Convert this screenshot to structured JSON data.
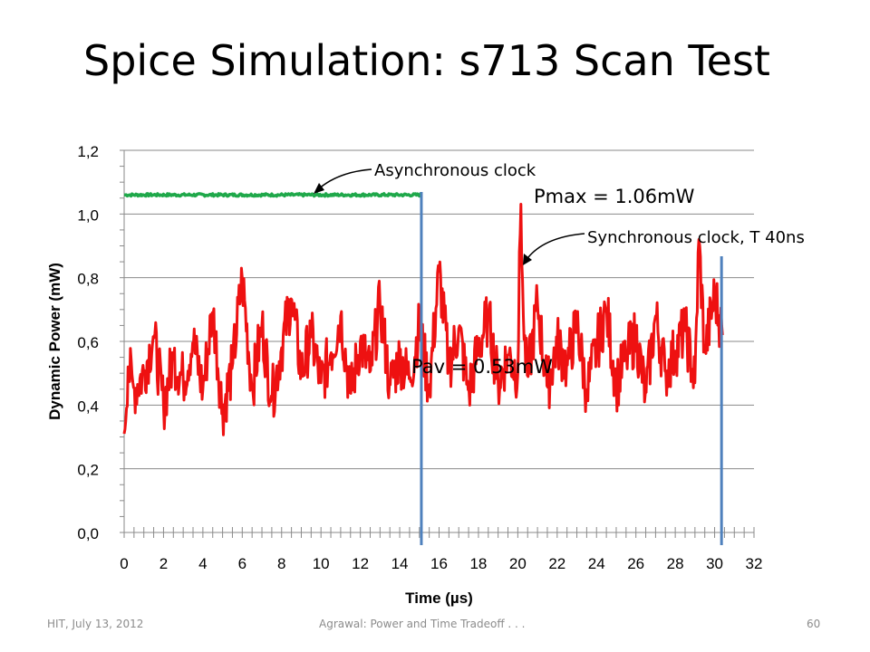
{
  "slide": {
    "title": "Spice Simulation: s713 Scan Test",
    "footer_left": "HIT, July 13, 2012",
    "footer_center": "Agrawal: Power and Time Tradeoff . . .",
    "footer_right": "60"
  },
  "chart_data": {
    "type": "line",
    "xlabel": "Time (µs)",
    "ylabel": "Dynamic Power (mW)",
    "xlim": [
      0,
      32
    ],
    "ylim": [
      0,
      1.2
    ],
    "x_ticks": [
      0,
      2,
      4,
      6,
      8,
      10,
      12,
      14,
      16,
      18,
      20,
      22,
      24,
      26,
      28,
      30,
      32
    ],
    "y_ticks": [
      "0,0",
      "0,2",
      "0,4",
      "0,6",
      "0,8",
      "1,0",
      "1,2"
    ],
    "grid": true,
    "series": [
      {
        "label": "Asynchronous clock",
        "color": "#1fa84a",
        "x": [
          0,
          15.1
        ],
        "y": [
          1.06,
          1.06
        ],
        "noise": 0.004
      },
      {
        "label": "Synchronous clock, T 40ns",
        "color": "#ee1111",
        "x": [
          0,
          0.2,
          0.5,
          1,
          1.5,
          2,
          2.5,
          3,
          3.5,
          4,
          4.5,
          5,
          5.5,
          6,
          6.5,
          7,
          7.5,
          8,
          8.5,
          9,
          9.5,
          10,
          10.5,
          11,
          11.5,
          12,
          12.5,
          13,
          13.5,
          14,
          14.5,
          15,
          15.5,
          16,
          16.5,
          17,
          17.5,
          18,
          18.5,
          19,
          19.5,
          20,
          20.15,
          20.3,
          20.5,
          21,
          21.5,
          22,
          22.5,
          23,
          23.5,
          24,
          24.5,
          25,
          25.5,
          26,
          26.5,
          27,
          27.5,
          28,
          28.5,
          29,
          29.2,
          29.5,
          30,
          30.4
        ],
        "y": [
          0.31,
          0.52,
          0.45,
          0.5,
          0.62,
          0.4,
          0.55,
          0.48,
          0.6,
          0.45,
          0.7,
          0.38,
          0.52,
          0.8,
          0.45,
          0.65,
          0.42,
          0.58,
          0.74,
          0.5,
          0.62,
          0.47,
          0.56,
          0.68,
          0.43,
          0.6,
          0.5,
          0.72,
          0.46,
          0.55,
          0.48,
          0.65,
          0.45,
          0.82,
          0.52,
          0.64,
          0.44,
          0.58,
          0.68,
          0.47,
          0.56,
          0.5,
          1.06,
          0.62,
          0.48,
          0.72,
          0.45,
          0.6,
          0.52,
          0.66,
          0.44,
          0.58,
          0.7,
          0.46,
          0.55,
          0.62,
          0.43,
          0.68,
          0.5,
          0.57,
          0.64,
          0.47,
          0.92,
          0.56,
          0.75,
          0.62
        ],
        "noise": 0.09
      }
    ],
    "markers": [
      {
        "label": "",
        "x": 15.1
      },
      {
        "label": "",
        "x": 30.35
      }
    ],
    "annotations": [
      {
        "text": "Asynchronous clock"
      },
      {
        "text": "Pmax = 1.06mW"
      },
      {
        "text": "Synchronous clock, T 40ns"
      },
      {
        "text": "Pav = 0.53mW"
      }
    ]
  }
}
